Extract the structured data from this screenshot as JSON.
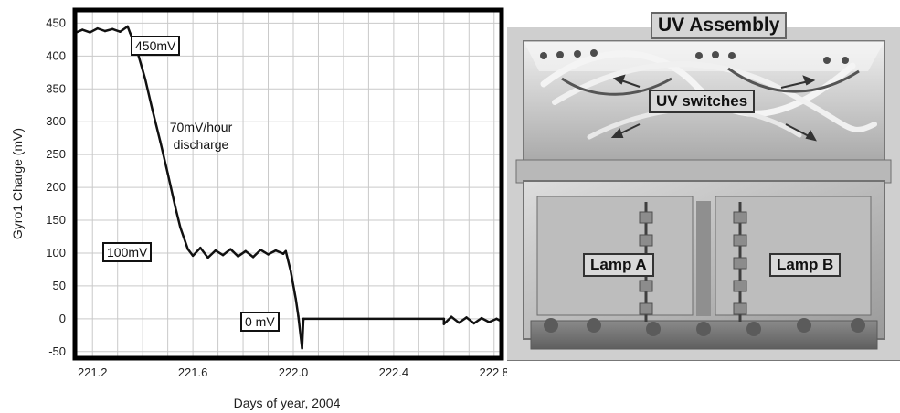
{
  "chart_data": {
    "type": "line",
    "xlabel": "Days of year, 2004",
    "ylabel": "Gyro1 Charge (mV)",
    "xlim": [
      221.13,
      222.83
    ],
    "ylim": [
      -60,
      470
    ],
    "xticks": [
      221.2,
      221.6,
      222.0,
      222.4,
      222.8
    ],
    "xtick_labels": [
      "221.2",
      "221.6",
      "222.0",
      "222.4",
      "222 8"
    ],
    "yticks": [
      450,
      400,
      350,
      300,
      250,
      200,
      150,
      100,
      50,
      0,
      -50
    ],
    "ytick_labels": [
      "450",
      "400",
      "350",
      "300",
      "250",
      "200",
      "150",
      "100",
      "50",
      "0",
      "-50"
    ],
    "grid": true,
    "series": [
      {
        "values": [
          [
            221.13,
            435
          ],
          [
            221.16,
            440
          ],
          [
            221.19,
            436
          ],
          [
            221.22,
            442
          ],
          [
            221.25,
            438
          ],
          [
            221.28,
            441
          ],
          [
            221.31,
            437
          ],
          [
            221.34,
            445
          ],
          [
            221.35,
            435
          ],
          [
            221.38,
            405
          ],
          [
            221.41,
            365
          ],
          [
            221.44,
            316
          ],
          [
            221.47,
            270
          ],
          [
            221.5,
            221
          ],
          [
            221.53,
            170
          ],
          [
            221.55,
            139
          ],
          [
            221.58,
            106
          ],
          [
            221.6,
            96
          ],
          [
            221.63,
            108
          ],
          [
            221.66,
            93
          ],
          [
            221.69,
            104
          ],
          [
            221.72,
            97
          ],
          [
            221.75,
            106
          ],
          [
            221.78,
            95
          ],
          [
            221.81,
            103
          ],
          [
            221.84,
            94
          ],
          [
            221.87,
            105
          ],
          [
            221.9,
            98
          ],
          [
            221.93,
            104
          ],
          [
            221.96,
            99
          ],
          [
            221.97,
            103
          ],
          [
            221.99,
            72
          ],
          [
            222.01,
            30
          ],
          [
            222.02,
            4
          ],
          [
            222.035,
            -45
          ],
          [
            222.04,
            -2
          ],
          [
            222.04,
            0
          ],
          [
            222.6,
            0
          ],
          [
            222.6,
            -8
          ],
          [
            222.63,
            3
          ],
          [
            222.66,
            -6
          ],
          [
            222.69,
            2
          ],
          [
            222.72,
            -7
          ],
          [
            222.75,
            1
          ],
          [
            222.78,
            -5
          ],
          [
            222.81,
            0
          ],
          [
            222.83,
            -4
          ]
        ]
      }
    ],
    "annotations": [
      {
        "text": "450mV"
      },
      {
        "text": "70mV/hour\ndischarge"
      },
      {
        "text": "100mV"
      },
      {
        "text": "0 mV"
      }
    ]
  },
  "photo": {
    "title": "UV Assembly",
    "labels": {
      "switches": "UV switches",
      "lamp_a": "Lamp A",
      "lamp_b": "Lamp B"
    }
  }
}
